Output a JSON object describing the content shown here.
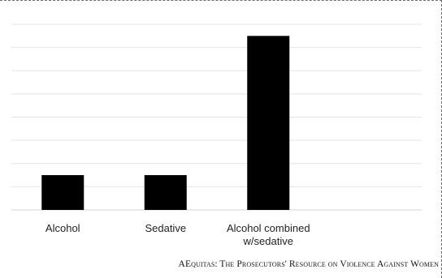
{
  "chart_data": {
    "type": "bar",
    "categories": [
      [
        "Alcohol"
      ],
      [
        "Sedative"
      ],
      [
        "Alcohol combined",
        "w/sedative"
      ]
    ],
    "values": [
      1.5,
      1.5,
      7.5
    ],
    "ylim": [
      0,
      8
    ],
    "grid": true,
    "bar_color": "#000000",
    "grid_color": "#e4e4e4"
  },
  "footer": "AEquitas: The Prosecutors' Resource on Violence Against Women"
}
